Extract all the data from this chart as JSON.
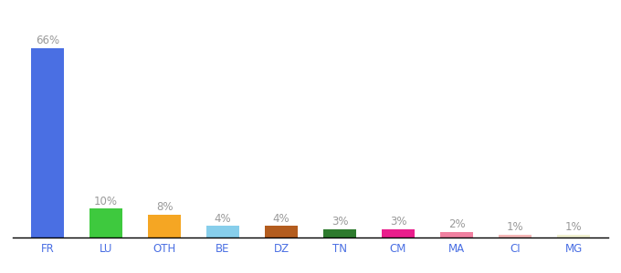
{
  "categories": [
    "FR",
    "LU",
    "OTH",
    "BE",
    "DZ",
    "TN",
    "CM",
    "MA",
    "CI",
    "MG"
  ],
  "values": [
    66,
    10,
    8,
    4,
    4,
    3,
    3,
    2,
    1,
    1
  ],
  "bar_colors": [
    "#4a6fe3",
    "#3ec93e",
    "#f5a623",
    "#87ceeb",
    "#b35c1e",
    "#2d7a2d",
    "#e91e8c",
    "#f080a0",
    "#f5b8b8",
    "#f0f0d0"
  ],
  "labels": [
    "66%",
    "10%",
    "8%",
    "4%",
    "4%",
    "3%",
    "3%",
    "2%",
    "1%",
    "1%"
  ],
  "background_color": "#ffffff",
  "label_color": "#999999",
  "label_fontsize": 8.5,
  "tick_fontsize": 8.5,
  "tick_color": "#4a6fe3",
  "ylim": [
    0,
    78
  ],
  "bar_width": 0.55
}
